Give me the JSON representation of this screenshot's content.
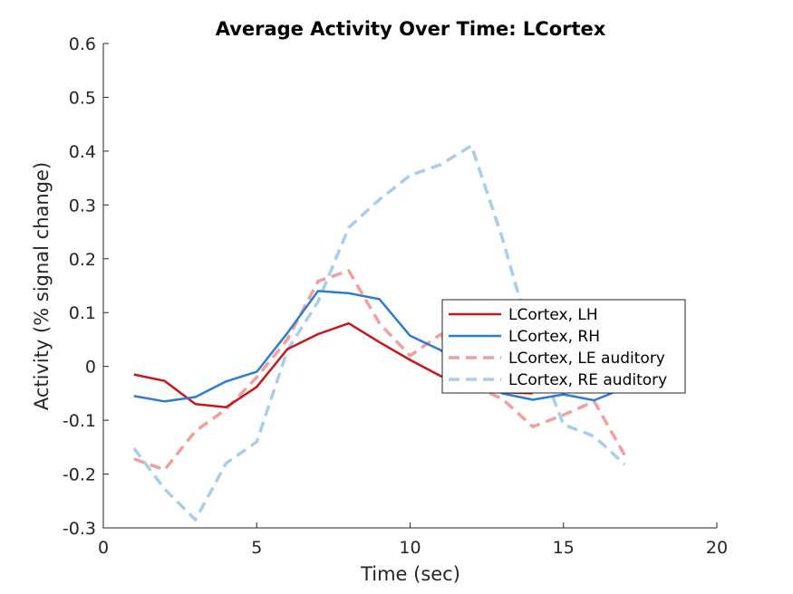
{
  "chart_data": {
    "type": "line",
    "title": "Average Activity Over Time: LCortex",
    "xlabel": "Time (sec)",
    "ylabel": "Activity (% signal change)",
    "xlim": [
      0,
      20
    ],
    "ylim": [
      -0.3,
      0.6
    ],
    "xticks": [
      0,
      5,
      10,
      15,
      20
    ],
    "yticks": [
      -0.3,
      -0.2,
      -0.1,
      0,
      0.1,
      0.2,
      0.3,
      0.4,
      0.5,
      0.6
    ],
    "xtick_labels": [
      "0",
      "5",
      "10",
      "15",
      "20"
    ],
    "ytick_labels": [
      "-0.3",
      "-0.2",
      "-0.1",
      "0",
      "0.1",
      "0.2",
      "0.3",
      "0.4",
      "0.5",
      "0.6"
    ],
    "grid": false,
    "legend_position": "right-middle",
    "x": [
      1,
      2,
      3,
      4,
      5,
      6,
      7,
      8,
      9,
      10,
      11,
      12,
      13,
      14,
      15,
      16,
      17
    ],
    "series": [
      {
        "name": "LCortex, LH",
        "color": "#c8161d",
        "dashed": false,
        "values": [
          -0.015,
          -0.027,
          -0.07,
          -0.076,
          -0.038,
          0.032,
          0.06,
          0.08,
          0.045,
          0.012,
          -0.018,
          -0.038,
          -0.048,
          -0.05,
          null,
          null,
          null
        ]
      },
      {
        "name": "LCortex, RH",
        "color": "#2e7cd0",
        "dashed": false,
        "values": [
          -0.055,
          -0.065,
          -0.057,
          -0.028,
          -0.01,
          0.062,
          0.14,
          0.136,
          0.125,
          0.057,
          0.03,
          -0.02,
          -0.05,
          -0.062,
          -0.052,
          -0.063,
          -0.04
        ]
      },
      {
        "name": "LCortex, LE auditory",
        "color": "#f0a0a0",
        "dashed": true,
        "values": [
          -0.172,
          -0.192,
          -0.12,
          -0.08,
          -0.02,
          0.05,
          0.158,
          0.178,
          0.08,
          0.02,
          0.06,
          -0.035,
          -0.06,
          -0.112,
          -0.09,
          -0.065,
          -0.165
        ]
      },
      {
        "name": "LCortex, RE auditory",
        "color": "#a9cdec",
        "dashed": true,
        "values": [
          -0.152,
          -0.228,
          -0.285,
          -0.18,
          -0.14,
          0.03,
          0.12,
          0.258,
          0.31,
          0.355,
          0.375,
          0.41,
          0.24,
          0.04,
          -0.108,
          -0.13,
          -0.182
        ]
      }
    ]
  }
}
